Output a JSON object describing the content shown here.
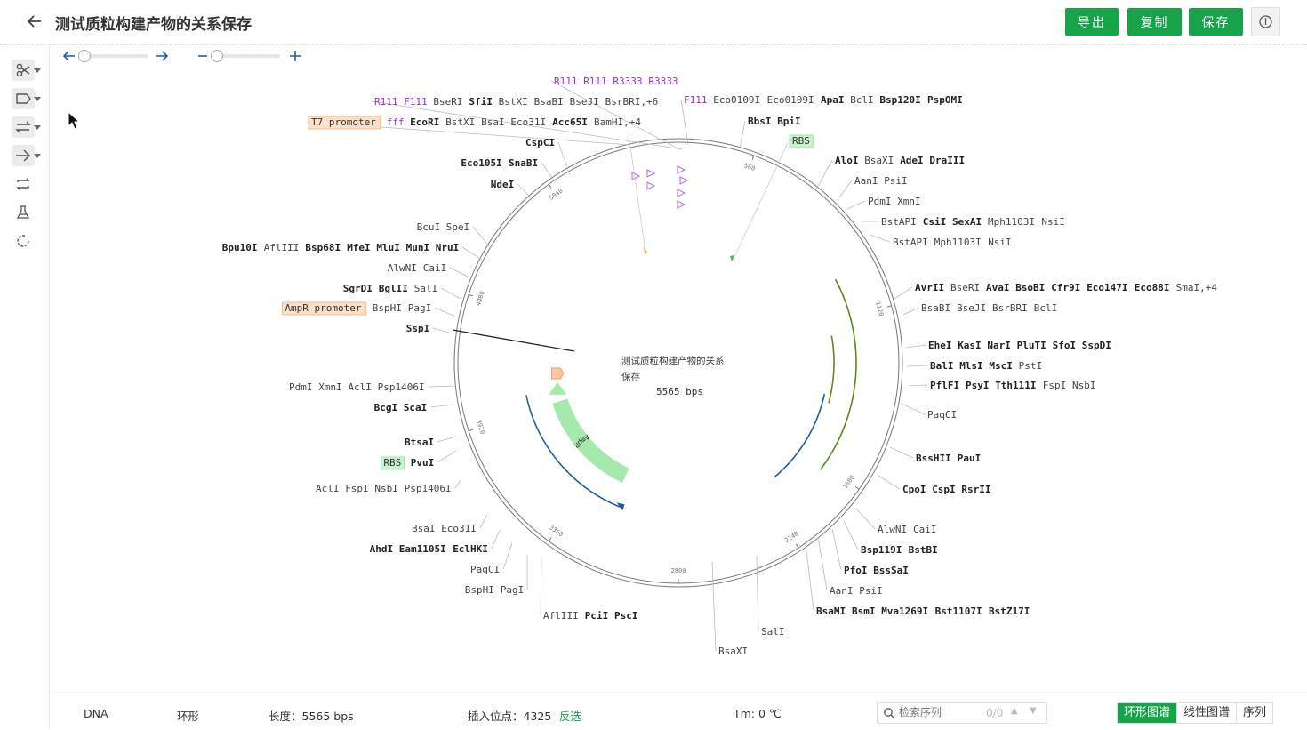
{
  "header": {
    "title": "测试质粒构建产物的关系保存",
    "buttons": {
      "export": "导出",
      "copy": "复制",
      "save": "保存"
    }
  },
  "toolbar": {
    "tools": [
      "scissors-icon",
      "label-icon",
      "swap-icon",
      "arrow-right-icon",
      "loop-icon",
      "flask-icon",
      "refresh-icon"
    ]
  },
  "map": {
    "name_line1": "测试质粒构建产物的关系",
    "name_line2": "保存",
    "length_label": "5565 bps",
    "ticks": [
      {
        "angle": 20,
        "label": "560"
      },
      {
        "angle": 75,
        "label": "1120"
      },
      {
        "angle": 125,
        "label": "1680"
      },
      {
        "angle": 147,
        "label": "2240"
      },
      {
        "angle": 180,
        "label": "2800"
      },
      {
        "angle": 216,
        "label": "3360"
      },
      {
        "angle": 252,
        "label": "3920"
      },
      {
        "angle": 288,
        "label": "4480"
      },
      {
        "angle": 324,
        "label": "5040"
      }
    ],
    "features": {
      "ampr": "AmpR"
    }
  },
  "labels": [
    {
      "parts": [
        [
          "R111",
          "purple"
        ],
        [
          "R111",
          "purple"
        ],
        [
          "R3333",
          "purple"
        ],
        [
          "R3333",
          "purple"
        ]
      ]
    },
    {
      "parts": [
        [
          "R111",
          "purple"
        ],
        [
          "F111",
          "purple"
        ],
        [
          "BseRI",
          "n"
        ],
        [
          "SfiI",
          "b"
        ],
        [
          "BstXI",
          "n"
        ],
        [
          "BsaBI",
          "n"
        ],
        [
          "BseJI",
          "n"
        ],
        [
          "BsrBRI,+6",
          "n"
        ]
      ]
    },
    {
      "parts": [
        [
          "T7 promoter",
          "box-orange"
        ],
        [
          "fff",
          "purple"
        ],
        [
          "EcoRI",
          "b"
        ],
        [
          "BstXI",
          "n"
        ],
        [
          "BsaI",
          "n"
        ],
        [
          "Eco31I",
          "n"
        ],
        [
          "Acc65I",
          "b"
        ],
        [
          "BamHI,+4",
          "bn"
        ]
      ]
    },
    {
      "parts": [
        [
          "F111",
          "purple"
        ],
        [
          "Eco0109I",
          "n"
        ],
        [
          "Eco0109I",
          "n"
        ],
        [
          "ApaI",
          "b"
        ],
        [
          "BclI",
          "n"
        ],
        [
          "Bsp120I",
          "b"
        ],
        [
          "PspOMI",
          "b"
        ]
      ]
    },
    {
      "parts": [
        [
          "BbsI",
          "b"
        ],
        [
          "BpiI",
          "b"
        ]
      ]
    },
    {
      "parts": [
        [
          "RBS",
          "box-green"
        ]
      ]
    },
    {
      "parts": [
        [
          "CspCI",
          "b"
        ]
      ]
    },
    {
      "parts": [
        [
          "Eco105I",
          "b"
        ],
        [
          "SnaBI",
          "b"
        ]
      ]
    },
    {
      "parts": [
        [
          "NdeI",
          "b"
        ]
      ]
    },
    {
      "parts": [
        [
          "AloI",
          "b"
        ],
        [
          "BsaXI",
          "n"
        ],
        [
          "AdeI",
          "b"
        ],
        [
          "DraIII",
          "b"
        ]
      ]
    },
    {
      "parts": [
        [
          "AanI",
          "n"
        ],
        [
          "PsiI",
          "n"
        ]
      ]
    },
    {
      "parts": [
        [
          "PdmI",
          "n"
        ],
        [
          "XmnI",
          "n"
        ]
      ]
    },
    {
      "parts": [
        [
          "BstAPI",
          "n"
        ],
        [
          "CsiI",
          "b"
        ],
        [
          "SexAI",
          "b"
        ],
        [
          "Mph1103I",
          "n"
        ],
        [
          "NsiI",
          "n"
        ]
      ]
    },
    {
      "parts": [
        [
          "BstAPI",
          "n"
        ],
        [
          "Mph1103I",
          "n"
        ],
        [
          "NsiI",
          "n"
        ]
      ]
    },
    {
      "parts": [
        [
          "BcuI",
          "n"
        ],
        [
          "SpeI",
          "n"
        ]
      ]
    },
    {
      "parts": [
        [
          "Bpu10I",
          "b"
        ],
        [
          "AflIII",
          "n"
        ],
        [
          "Bsp68I",
          "b"
        ],
        [
          "MfeI",
          "b"
        ],
        [
          "MluI",
          "b"
        ],
        [
          "MunI",
          "b"
        ],
        [
          "NruI",
          "b"
        ]
      ]
    },
    {
      "parts": [
        [
          "AlwNI",
          "n"
        ],
        [
          "CaiI",
          "n"
        ]
      ]
    },
    {
      "parts": [
        [
          "SgrDI",
          "b"
        ],
        [
          "BglII",
          "b"
        ],
        [
          "SalI",
          "n"
        ]
      ]
    },
    {
      "parts": [
        [
          "AmpR promoter",
          "box-orange"
        ],
        [
          "BspHI",
          "n"
        ],
        [
          "PagI",
          "n"
        ]
      ]
    },
    {
      "parts": [
        [
          "SspI",
          "b"
        ]
      ]
    },
    {
      "parts": [
        [
          "AvrII",
          "b"
        ],
        [
          "BseRI",
          "n"
        ],
        [
          "AvaI",
          "b"
        ],
        [
          "BsoBI",
          "b"
        ],
        [
          "Cfr9I",
          "b"
        ],
        [
          "Eco147I",
          "b"
        ],
        [
          "Eco88I",
          "b"
        ],
        [
          "SmaI,+4",
          "bn"
        ]
      ]
    },
    {
      "parts": [
        [
          "BsaBI",
          "n"
        ],
        [
          "BseJI",
          "n"
        ],
        [
          "BsrBRI",
          "n"
        ],
        [
          "BclI",
          "n"
        ]
      ]
    },
    {
      "parts": [
        [
          "EheI",
          "b"
        ],
        [
          "KasI",
          "b"
        ],
        [
          "NarI",
          "b"
        ],
        [
          "PluTI",
          "b"
        ],
        [
          "SfoI",
          "b"
        ],
        [
          "SspDI",
          "b"
        ]
      ]
    },
    {
      "parts": [
        [
          "BalI",
          "b"
        ],
        [
          "MlsI",
          "b"
        ],
        [
          "MscI",
          "b"
        ],
        [
          "PstI",
          "n"
        ]
      ]
    },
    {
      "parts": [
        [
          "PflFI",
          "b"
        ],
        [
          "PsyI",
          "b"
        ],
        [
          "Tth111I",
          "b"
        ],
        [
          "FspI",
          "n"
        ],
        [
          "NsbI",
          "n"
        ]
      ]
    },
    {
      "parts": [
        [
          "PaqCI",
          "n"
        ]
      ]
    },
    {
      "parts": [
        [
          "PdmI",
          "n"
        ],
        [
          "XmnI",
          "n"
        ],
        [
          "AclI",
          "n"
        ],
        [
          "Psp1406I",
          "n"
        ]
      ]
    },
    {
      "parts": [
        [
          "BcgI",
          "b"
        ],
        [
          "ScaI",
          "b"
        ]
      ]
    },
    {
      "parts": [
        [
          "BtsaI",
          "b"
        ]
      ]
    },
    {
      "parts": [
        [
          "RBS",
          "box-green"
        ],
        [
          "PvuI",
          "b"
        ]
      ]
    },
    {
      "parts": [
        [
          "AclI",
          "n"
        ],
        [
          "FspI",
          "n"
        ],
        [
          "NsbI",
          "n"
        ],
        [
          "Psp1406I",
          "n"
        ]
      ]
    },
    {
      "parts": [
        [
          "BssHII",
          "b"
        ],
        [
          "PauI",
          "b"
        ]
      ]
    },
    {
      "parts": [
        [
          "CpoI",
          "b"
        ],
        [
          "CspI",
          "b"
        ],
        [
          "RsrII",
          "b"
        ]
      ]
    },
    {
      "parts": [
        [
          "BsaI",
          "n"
        ],
        [
          "Eco31I",
          "n"
        ]
      ]
    },
    {
      "parts": [
        [
          "AhdI",
          "b"
        ],
        [
          "Eam1105I",
          "b"
        ],
        [
          "EclHKI",
          "b"
        ]
      ]
    },
    {
      "parts": [
        [
          "PaqCI",
          "n"
        ]
      ]
    },
    {
      "parts": [
        [
          "BspHI",
          "n"
        ],
        [
          "PagI",
          "n"
        ]
      ]
    },
    {
      "parts": [
        [
          "AlwNI",
          "n"
        ],
        [
          "CaiI",
          "n"
        ]
      ]
    },
    {
      "parts": [
        [
          "Bsp119I",
          "b"
        ],
        [
          "BstBI",
          "b"
        ]
      ]
    },
    {
      "parts": [
        [
          "PfoI",
          "b"
        ],
        [
          "BssSaI",
          "b"
        ]
      ]
    },
    {
      "parts": [
        [
          "AanI",
          "n"
        ],
        [
          "PsiI",
          "n"
        ]
      ]
    },
    {
      "parts": [
        [
          "BsaMI",
          "b"
        ],
        [
          "BsmI",
          "b"
        ],
        [
          "Mva1269I",
          "b"
        ],
        [
          "Bst1107I",
          "b"
        ],
        [
          "BstZ17I",
          "b"
        ]
      ]
    },
    {
      "parts": [
        [
          "SalI",
          "n"
        ]
      ]
    },
    {
      "parts": [
        [
          "BsaXI",
          "n"
        ]
      ]
    },
    {
      "parts": [
        [
          "AflIII",
          "n"
        ],
        [
          "PciI",
          "b"
        ],
        [
          "PscI",
          "b"
        ]
      ]
    }
  ],
  "footer": {
    "type": "DNA",
    "topology": "环形",
    "length": "长度：5565 bps",
    "insert": "插入位点：4325",
    "reverse_select": "反选",
    "tm": "Tm: 0 ℃",
    "search_placeholder": "检索序列",
    "search_count": "0/0",
    "tabs": [
      "环形图谱",
      "线性图谱",
      "序列"
    ]
  },
  "colors": {
    "accent": "#17a34a",
    "purple": "#9b30d9",
    "orange_bg": "#fde0c8",
    "green_bg": "#c9f3cf"
  }
}
